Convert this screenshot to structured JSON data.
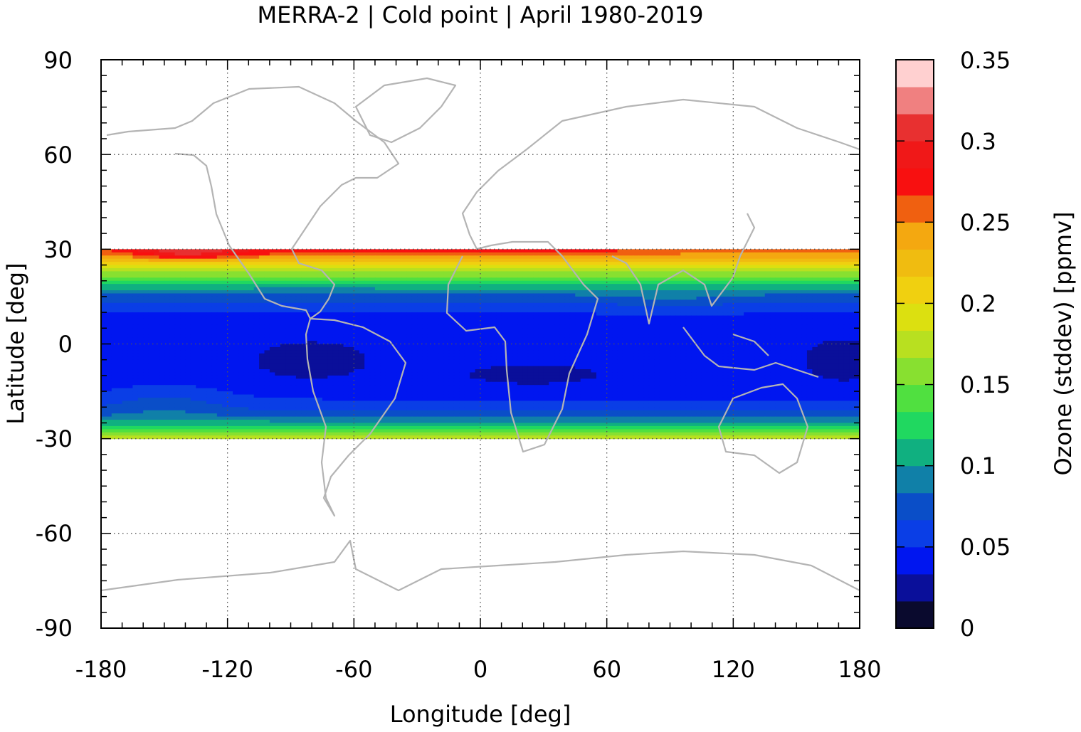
{
  "chart_data": {
    "type": "heatmap",
    "title": "MERRA-2 | Cold point | April 1980-2019",
    "xlabel": "Longitude [deg]",
    "ylabel": "Latitude [deg]",
    "xlim": [
      -180,
      180
    ],
    "ylim": [
      -90,
      90
    ],
    "x_ticks": [
      "-180",
      "-120",
      "-60",
      "0",
      "60",
      "120",
      "180"
    ],
    "y_ticks": [
      "90",
      "60",
      "30",
      "0",
      "-30",
      "-60",
      "-90"
    ],
    "data_lat_range": [
      -30,
      30
    ],
    "grid": "dotted at ticks",
    "colorbar": {
      "label": "Ozone (stddev) [ppmv]",
      "range": [
        0,
        0.35
      ],
      "step": 0.0175,
      "tick_labels": [
        "0",
        "0.05",
        "0.1",
        "0.15",
        "0.2",
        "0.25",
        "0.3",
        "0.35"
      ],
      "colors": [
        "#0a0a2e",
        "#0a0f9a",
        "#0016f0",
        "#0a3ee6",
        "#0a4ec8",
        "#1080a8",
        "#10b080",
        "#20d860",
        "#50e040",
        "#88e030",
        "#b8e020",
        "#dce010",
        "#f0d010",
        "#f0bc10",
        "#f4a810",
        "#f06010",
        "#f81010",
        "#f01818",
        "#e83030",
        "#f08080",
        "#ffd0d0"
      ]
    },
    "latitudes": [
      30,
      27.5,
      25,
      22.5,
      20,
      17.5,
      15,
      12.5,
      10,
      7.5,
      5,
      2.5,
      0,
      -2.5,
      -5,
      -7.5,
      -10,
      -12.5,
      -15,
      -17.5,
      -20,
      -22.5,
      -25,
      -27.5,
      -30
    ],
    "zonal_profile_ppmv": [
      0.262,
      0.235,
      0.2,
      0.165,
      0.13,
      0.1,
      0.078,
      0.062,
      0.05,
      0.044,
      0.041,
      0.04,
      0.039,
      0.038,
      0.037,
      0.037,
      0.038,
      0.04,
      0.043,
      0.05,
      0.06,
      0.078,
      0.105,
      0.14,
      0.175
    ],
    "features": [
      {
        "name": "northern-edge maximum",
        "lon": [
          -180,
          120
        ],
        "lat": 29,
        "value": 0.3
      },
      {
        "name": "eastern Pacific minimum",
        "lon": [
          -100,
          -60
        ],
        "lat": [
          -10,
          0
        ],
        "value": 0.02
      },
      {
        "name": "Africa minimum",
        "lon": [
          -5,
          55
        ],
        "lat": [
          -12,
          -8
        ],
        "value": 0.02
      },
      {
        "name": "western Pacific minimum",
        "lon": [
          160,
          180
        ],
        "lat": [
          -12,
          0
        ],
        "value": 0.02
      }
    ]
  }
}
